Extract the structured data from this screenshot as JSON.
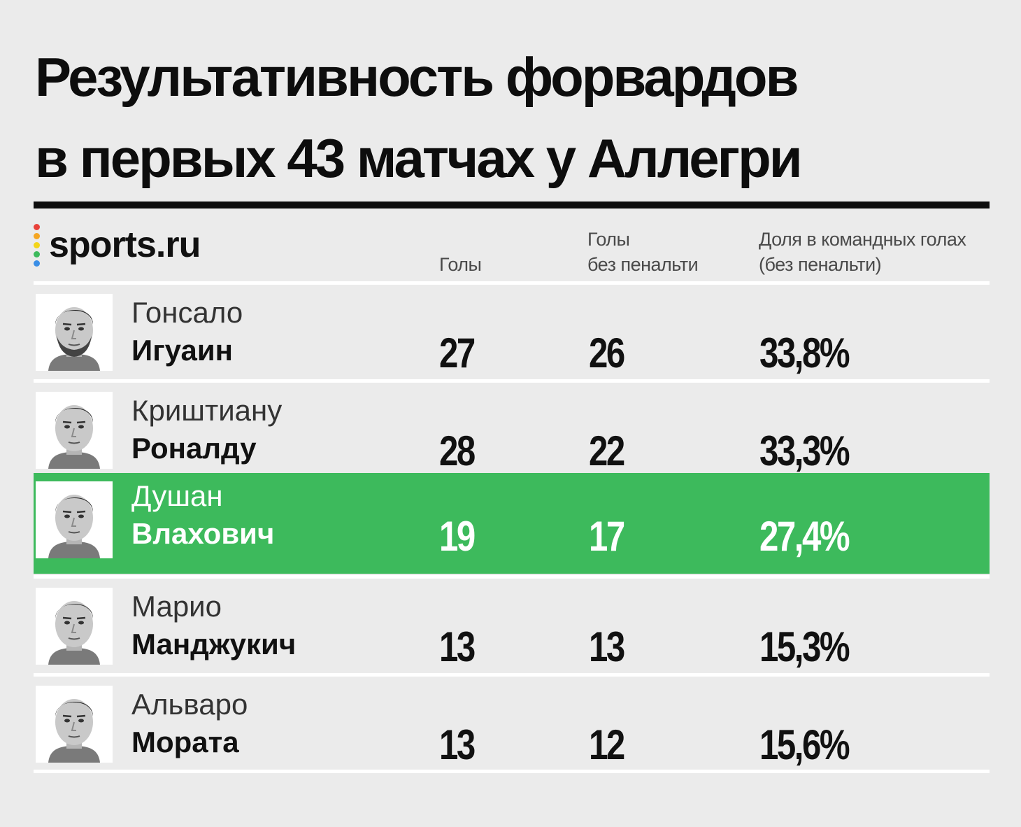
{
  "title_lines": [
    "Результативность форвардов",
    "в первых 43 матчах у Аллегри"
  ],
  "brand": {
    "logo_text": "sports.ru",
    "dot_colors": [
      "#e8413a",
      "#f5a623",
      "#f3d51a",
      "#3dba5c",
      "#3a8ee6",
      "#9b59b6"
    ]
  },
  "headers": {
    "goals": "Голы",
    "npg_line1": "Голы",
    "npg_line2": "без пенальти",
    "share_line1": "Доля в командных голах",
    "share_line2": "(без пенальти)"
  },
  "colors": {
    "background": "#ebebeb",
    "highlight": "#3dba5c",
    "text": "#111111"
  },
  "chart_data": {
    "type": "table",
    "columns": [
      "Голы",
      "Голы без пенальти",
      "Доля в командных голах (без пенальти)"
    ],
    "rows": [
      {
        "first": "Гонсало",
        "last": "Игуаин",
        "goals": "27",
        "npg": "26",
        "share": "33,8%",
        "highlight": false
      },
      {
        "first": "Криштиану",
        "last": "Роналду",
        "goals": "28",
        "npg": "22",
        "share": "33,3%",
        "highlight": false
      },
      {
        "first": "Душан",
        "last": "Влахович",
        "goals": "19",
        "npg": "17",
        "share": "27,4%",
        "highlight": true
      },
      {
        "first": "Марио",
        "last": "Манджукич",
        "goals": "13",
        "npg": "13",
        "share": "15,3%",
        "highlight": false
      },
      {
        "first": "Альваро",
        "last": "Мората",
        "goals": "13",
        "npg": "12",
        "share": "15,6%",
        "highlight": false
      }
    ]
  }
}
